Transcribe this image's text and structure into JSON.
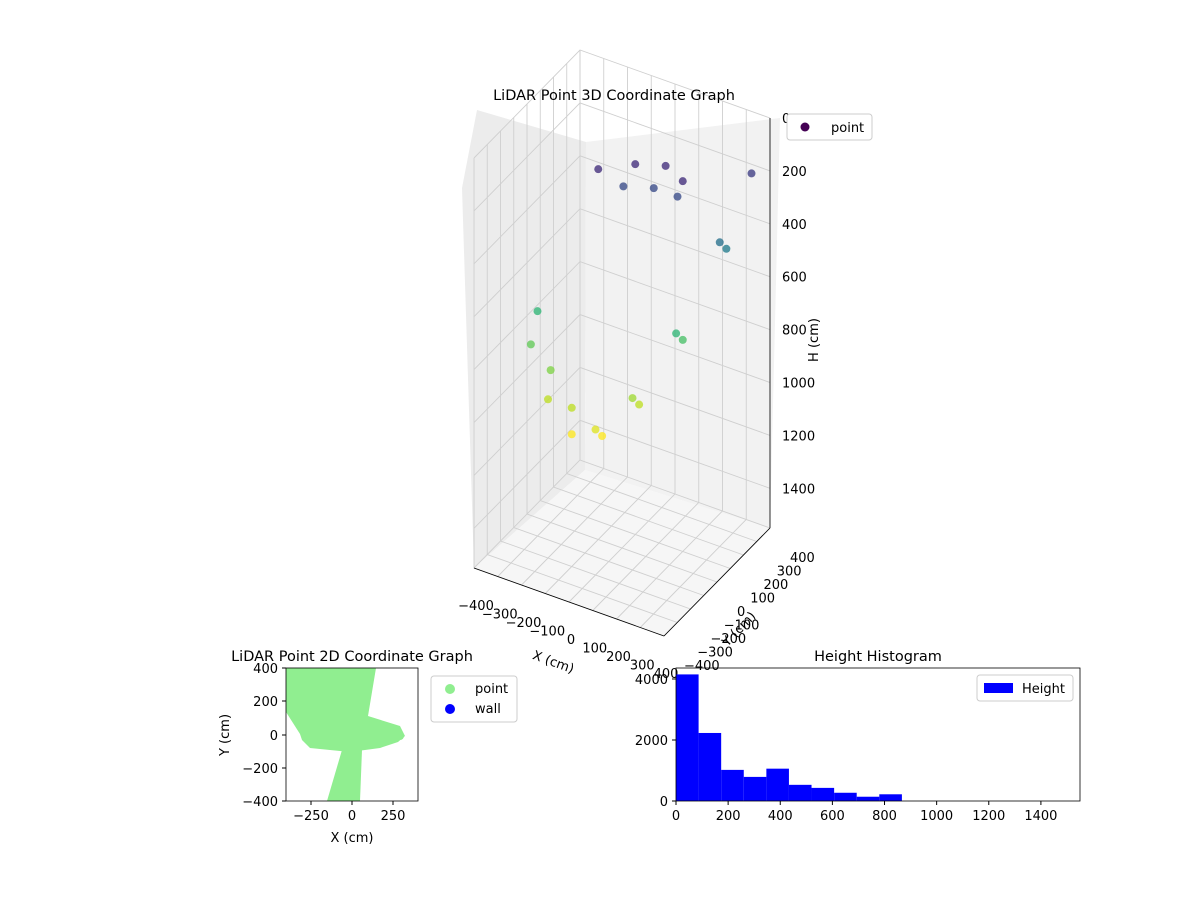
{
  "chart_data": [
    {
      "type": "scatter",
      "title": "LiDAR Point 3D Coordinate Graph",
      "xlabel": "X (cm)",
      "ylabel": "Y (cm)",
      "zlabel": "H (cm)",
      "x_ticks": [
        "−400",
        "−300",
        "−200",
        "−100",
        "0",
        "100",
        "200",
        "300",
        "400"
      ],
      "y_ticks": [
        "−400",
        "−300",
        "−200",
        "−100",
        "0",
        "100",
        "200",
        "300",
        "400"
      ],
      "z_ticks": [
        "0",
        "200",
        "400",
        "600",
        "800",
        "1000",
        "1200",
        "1400"
      ],
      "xlim": [
        -400,
        400
      ],
      "ylim": [
        -400,
        400
      ],
      "zlim": [
        0,
        1550
      ],
      "z_inverted": true,
      "colormap": "viridis",
      "legend": {
        "label": "point",
        "placement": "top-right"
      },
      "series": [
        {
          "name": "point",
          "points": [
            [
              -300,
              -150,
              800
            ],
            [
              -200,
              -200,
              950
            ],
            [
              -100,
              -200,
              1050
            ],
            [
              0,
              -150,
              1050
            ],
            [
              100,
              -50,
              950
            ],
            [
              200,
              100,
              750
            ],
            [
              300,
              250,
              450
            ],
            [
              350,
              350,
              200
            ],
            [
              -300,
              -100,
              700
            ],
            [
              -200,
              -180,
              850
            ],
            [
              -100,
              -200,
              950
            ],
            [
              0,
              -200,
              1000
            ],
            [
              100,
              -100,
              900
            ],
            [
              200,
              50,
              700
            ],
            [
              300,
              200,
              400
            ],
            [
              -100,
              0,
              150
            ],
            [
              0,
              100,
              150
            ],
            [
              100,
              150,
              150
            ],
            [
              200,
              100,
              150
            ],
            [
              -50,
              100,
              250
            ],
            [
              50,
              150,
              250
            ],
            [
              150,
              150,
              250
            ]
          ]
        }
      ]
    },
    {
      "type": "scatter",
      "title": "LiDAR Point 2D Coordinate Graph",
      "xlabel": "X (cm)",
      "ylabel": "Y (cm)",
      "x_ticks": [
        "−250",
        "0",
        "250"
      ],
      "y_ticks": [
        "400",
        "200",
        "0",
        "−200",
        "−400"
      ],
      "xlim": [
        -400,
        400
      ],
      "ylim": [
        -400,
        400
      ],
      "legend": {
        "placement": "outside-right"
      },
      "series": [
        {
          "name": "point",
          "color": "#90ee90"
        },
        {
          "name": "wall",
          "color": "#0000ff"
        }
      ]
    },
    {
      "type": "bar",
      "title": "Height Histogram",
      "xlabel": "",
      "ylabel": "",
      "bin_edges": [
        0,
        86.7,
        173.3,
        260,
        346.7,
        433.3,
        520,
        606.7,
        693.3,
        780,
        866.7,
        953.3,
        1040,
        1126.7,
        1213.3,
        1300
      ],
      "values": [
        4150,
        2230,
        1020,
        790,
        1060,
        530,
        430,
        270,
        140,
        220,
        0,
        0,
        0,
        0,
        0
      ],
      "xlim": [
        0,
        1550
      ],
      "ylim": [
        0,
        4360
      ],
      "x_ticks": [
        "0",
        "200",
        "400",
        "600",
        "800",
        "1000",
        "1200",
        "1400"
      ],
      "y_ticks": [
        "0",
        "2000",
        "4000"
      ],
      "series": [
        {
          "name": "Height",
          "color": "#0000ff"
        }
      ],
      "legend": {
        "placement": "top-right"
      }
    }
  ]
}
